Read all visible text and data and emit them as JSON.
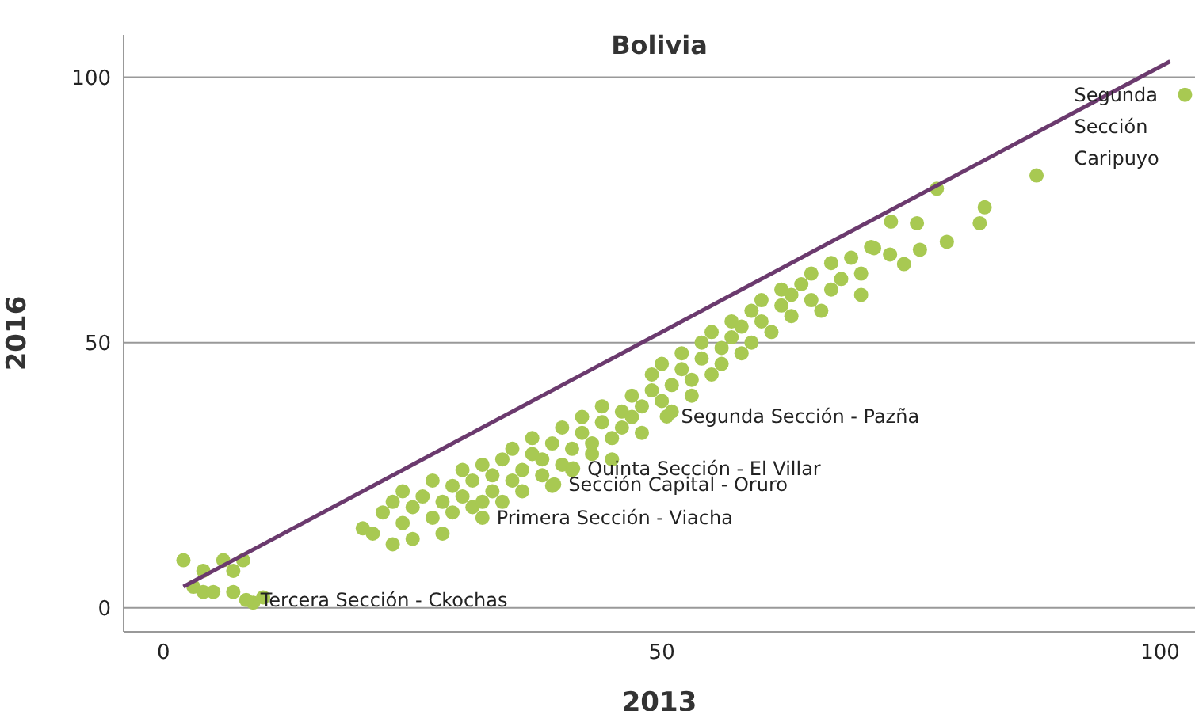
{
  "chart_data": {
    "type": "scatter",
    "title": "Bolivia",
    "xlabel": "2013",
    "ylabel": "2016",
    "xlim": [
      -4,
      103.5
    ],
    "ylim": [
      -4.5,
      108
    ],
    "xticks": [
      0,
      50,
      100
    ],
    "yticks": [
      0,
      50,
      100
    ],
    "grid": "y",
    "marker": "circle",
    "series": [
      {
        "color": "#a8c952",
        "x": [
          2,
          3,
          4,
          5,
          4,
          6,
          7,
          8,
          7,
          9,
          10,
          8.3,
          20,
          21,
          22,
          23,
          23,
          24,
          24,
          25,
          25,
          26,
          27,
          27,
          28,
          28,
          29,
          29,
          30,
          30,
          31,
          31,
          32,
          32,
          33,
          33,
          34,
          34,
          35,
          35,
          36,
          36,
          37,
          37,
          38,
          38,
          39,
          39,
          40,
          40,
          41,
          41,
          42,
          42,
          43,
          43,
          44,
          44,
          45,
          45,
          46,
          46,
          47,
          47,
          48,
          48,
          49,
          49,
          50,
          50,
          51,
          51,
          52,
          52,
          53,
          53,
          54,
          54,
          55,
          55,
          56,
          56,
          57,
          57,
          58,
          58,
          59,
          59,
          60,
          60,
          61,
          62,
          62,
          63,
          63,
          64,
          65,
          65,
          66,
          67,
          67,
          68,
          69,
          70,
          70,
          71,
          71.3,
          72.9,
          73,
          74.3,
          75.6,
          75.9,
          77.6,
          78.6,
          81.9,
          82.4,
          87.6,
          32,
          39.2,
          41.1,
          50.5,
          102.5
        ],
        "values": [
          9,
          4,
          3,
          3,
          7,
          9,
          7,
          9,
          3,
          1,
          2,
          1.5,
          15,
          14,
          18,
          20,
          12,
          16,
          22,
          13,
          19,
          21,
          17,
          24,
          20,
          14,
          23,
          18,
          26,
          21,
          19,
          24,
          20,
          27,
          22,
          25,
          28,
          20,
          24,
          30,
          26,
          22,
          29,
          32,
          25,
          28,
          31,
          23,
          27,
          34,
          30,
          26,
          33,
          36,
          29,
          31,
          35,
          38,
          32,
          28,
          37,
          34,
          40,
          36,
          33,
          38,
          41,
          44,
          39,
          46,
          42,
          37,
          45,
          48,
          43,
          40,
          47,
          50,
          44,
          52,
          49,
          46,
          51,
          54,
          48,
          53,
          56,
          50,
          54,
          58,
          52,
          57,
          60,
          55,
          59,
          61,
          58,
          63,
          56,
          60,
          65,
          62,
          66,
          63,
          59,
          68,
          67.8,
          66.6,
          72.8,
          64.8,
          72.5,
          67.5,
          79,
          69,
          72.5,
          75.5,
          81.5,
          17,
          23.3,
          26.3,
          36.1,
          96.7
        ]
      },
      {
        "type": "line",
        "color": "#6b3a6e",
        "x": [
          2,
          101
        ],
        "values": [
          4,
          103
        ],
        "marker": "none"
      }
    ],
    "annotations": [
      {
        "text": "Tercera Sección - Ckochas",
        "x": 8.3,
        "y": 1.5
      },
      {
        "text": "Primera Sección - Viacha",
        "x": 32,
        "y": 17
      },
      {
        "text": "Sección Capital - Oruro",
        "x": 39.2,
        "y": 23.3
      },
      {
        "text": "Quinta Sección - El Villar",
        "x": 41.1,
        "y": 26.3
      },
      {
        "text": "Segunda Sección - Pazña",
        "x": 50.5,
        "y": 36.1
      },
      {
        "text": "Segunda Sección Caripuyo",
        "x": 102.5,
        "y": 96.7
      }
    ]
  }
}
